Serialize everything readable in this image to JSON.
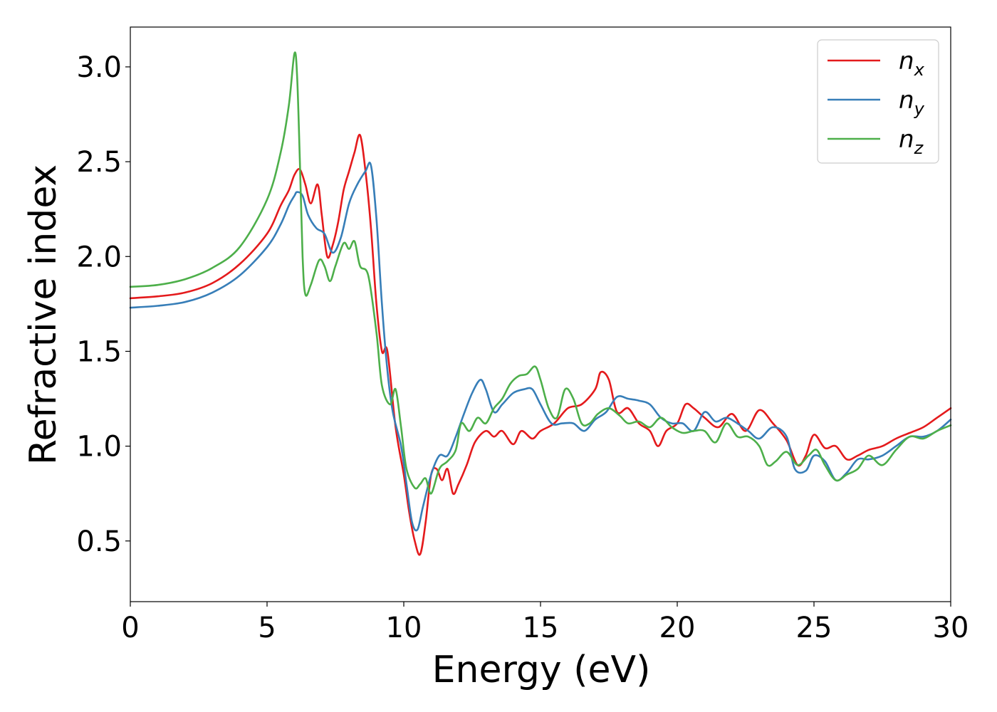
{
  "chart_data": {
    "type": "line",
    "xlabel": "Energy (eV)",
    "ylabel": "Refractive index",
    "xlim": [
      0,
      30
    ],
    "ylim": [
      0.18,
      3.21
    ],
    "xticks": [
      "0",
      "5",
      "10",
      "15",
      "20",
      "25",
      "30"
    ],
    "yticks": [
      "0.5",
      "1.0",
      "1.5",
      "2.0",
      "2.5",
      "3.0"
    ],
    "grid": false,
    "legend_position": "top-right",
    "series": [
      {
        "name": "n",
        "subscript": "x",
        "color": "#e41a1c",
        "points": [
          [
            0,
            1.78
          ],
          [
            1,
            1.79
          ],
          [
            2,
            1.81
          ],
          [
            3,
            1.86
          ],
          [
            4,
            1.96
          ],
          [
            5,
            2.12
          ],
          [
            5.5,
            2.27
          ],
          [
            5.8,
            2.35
          ],
          [
            6.0,
            2.43
          ],
          [
            6.2,
            2.46
          ],
          [
            6.4,
            2.38
          ],
          [
            6.6,
            2.28
          ],
          [
            6.85,
            2.38
          ],
          [
            7.0,
            2.22
          ],
          [
            7.2,
            2.0
          ],
          [
            7.4,
            2.06
          ],
          [
            7.6,
            2.18
          ],
          [
            7.8,
            2.35
          ],
          [
            8.0,
            2.45
          ],
          [
            8.2,
            2.55
          ],
          [
            8.4,
            2.64
          ],
          [
            8.6,
            2.45
          ],
          [
            8.8,
            2.15
          ],
          [
            9.0,
            1.75
          ],
          [
            9.2,
            1.5
          ],
          [
            9.4,
            1.5
          ],
          [
            9.7,
            1.1
          ],
          [
            10.0,
            0.85
          ],
          [
            10.2,
            0.65
          ],
          [
            10.4,
            0.5
          ],
          [
            10.6,
            0.43
          ],
          [
            10.8,
            0.6
          ],
          [
            11.0,
            0.85
          ],
          [
            11.2,
            0.88
          ],
          [
            11.4,
            0.82
          ],
          [
            11.6,
            0.88
          ],
          [
            11.8,
            0.75
          ],
          [
            12.0,
            0.8
          ],
          [
            12.3,
            0.9
          ],
          [
            12.6,
            1.02
          ],
          [
            13.0,
            1.08
          ],
          [
            13.3,
            1.05
          ],
          [
            13.6,
            1.08
          ],
          [
            14.0,
            1.01
          ],
          [
            14.3,
            1.08
          ],
          [
            14.7,
            1.04
          ],
          [
            15.0,
            1.08
          ],
          [
            15.5,
            1.12
          ],
          [
            16.0,
            1.2
          ],
          [
            16.5,
            1.22
          ],
          [
            17.0,
            1.3
          ],
          [
            17.2,
            1.39
          ],
          [
            17.5,
            1.35
          ],
          [
            17.8,
            1.18
          ],
          [
            18.2,
            1.2
          ],
          [
            18.6,
            1.12
          ],
          [
            19.0,
            1.08
          ],
          [
            19.3,
            1.0
          ],
          [
            19.6,
            1.08
          ],
          [
            20.0,
            1.12
          ],
          [
            20.3,
            1.22
          ],
          [
            20.6,
            1.2
          ],
          [
            21.0,
            1.15
          ],
          [
            21.5,
            1.1
          ],
          [
            22.0,
            1.17
          ],
          [
            22.5,
            1.08
          ],
          [
            23.0,
            1.19
          ],
          [
            23.5,
            1.12
          ],
          [
            24.0,
            1.03
          ],
          [
            24.4,
            0.9
          ],
          [
            24.7,
            0.95
          ],
          [
            25.0,
            1.06
          ],
          [
            25.4,
            0.99
          ],
          [
            25.8,
            1.0
          ],
          [
            26.2,
            0.93
          ],
          [
            26.6,
            0.95
          ],
          [
            27.0,
            0.98
          ],
          [
            27.5,
            1.0
          ],
          [
            28.0,
            1.04
          ],
          [
            28.5,
            1.07
          ],
          [
            29.0,
            1.1
          ],
          [
            29.5,
            1.15
          ],
          [
            30.0,
            1.2
          ]
        ]
      },
      {
        "name": "n",
        "subscript": "y",
        "color": "#377eb8",
        "points": [
          [
            0,
            1.73
          ],
          [
            1,
            1.74
          ],
          [
            2,
            1.76
          ],
          [
            3,
            1.81
          ],
          [
            4,
            1.9
          ],
          [
            5,
            2.05
          ],
          [
            5.5,
            2.17
          ],
          [
            5.8,
            2.27
          ],
          [
            6.0,
            2.32
          ],
          [
            6.1,
            2.34
          ],
          [
            6.3,
            2.32
          ],
          [
            6.5,
            2.22
          ],
          [
            6.8,
            2.15
          ],
          [
            7.1,
            2.12
          ],
          [
            7.4,
            2.02
          ],
          [
            7.7,
            2.1
          ],
          [
            8.0,
            2.28
          ],
          [
            8.3,
            2.38
          ],
          [
            8.6,
            2.45
          ],
          [
            8.8,
            2.48
          ],
          [
            9.0,
            2.2
          ],
          [
            9.2,
            1.75
          ],
          [
            9.4,
            1.4
          ],
          [
            9.6,
            1.18
          ],
          [
            9.9,
            1.0
          ],
          [
            10.1,
            0.8
          ],
          [
            10.3,
            0.6
          ],
          [
            10.5,
            0.56
          ],
          [
            10.7,
            0.68
          ],
          [
            11.0,
            0.85
          ],
          [
            11.3,
            0.95
          ],
          [
            11.6,
            0.95
          ],
          [
            11.9,
            1.05
          ],
          [
            12.2,
            1.17
          ],
          [
            12.5,
            1.28
          ],
          [
            12.8,
            1.35
          ],
          [
            13.0,
            1.3
          ],
          [
            13.3,
            1.18
          ],
          [
            13.6,
            1.22
          ],
          [
            14.0,
            1.28
          ],
          [
            14.4,
            1.3
          ],
          [
            14.7,
            1.3
          ],
          [
            15.0,
            1.22
          ],
          [
            15.4,
            1.12
          ],
          [
            15.8,
            1.12
          ],
          [
            16.2,
            1.12
          ],
          [
            16.6,
            1.08
          ],
          [
            17.0,
            1.14
          ],
          [
            17.4,
            1.18
          ],
          [
            17.8,
            1.26
          ],
          [
            18.2,
            1.25
          ],
          [
            18.6,
            1.24
          ],
          [
            19.0,
            1.22
          ],
          [
            19.4,
            1.15
          ],
          [
            19.8,
            1.12
          ],
          [
            20.2,
            1.12
          ],
          [
            20.6,
            1.08
          ],
          [
            21.0,
            1.18
          ],
          [
            21.4,
            1.13
          ],
          [
            21.8,
            1.15
          ],
          [
            22.2,
            1.12
          ],
          [
            22.6,
            1.08
          ],
          [
            23.0,
            1.04
          ],
          [
            23.5,
            1.1
          ],
          [
            24.0,
            1.05
          ],
          [
            24.3,
            0.88
          ],
          [
            24.7,
            0.87
          ],
          [
            25.0,
            0.95
          ],
          [
            25.4,
            0.92
          ],
          [
            25.8,
            0.82
          ],
          [
            26.2,
            0.86
          ],
          [
            26.6,
            0.93
          ],
          [
            27.0,
            0.93
          ],
          [
            27.5,
            0.95
          ],
          [
            28.0,
            1.0
          ],
          [
            28.5,
            1.05
          ],
          [
            29.0,
            1.05
          ],
          [
            29.5,
            1.08
          ],
          [
            30.0,
            1.14
          ]
        ]
      },
      {
        "name": "n",
        "subscript": "z",
        "color": "#4daf4a",
        "points": [
          [
            0,
            1.84
          ],
          [
            1,
            1.85
          ],
          [
            2,
            1.88
          ],
          [
            3,
            1.94
          ],
          [
            4,
            2.05
          ],
          [
            5,
            2.3
          ],
          [
            5.5,
            2.55
          ],
          [
            5.8,
            2.8
          ],
          [
            6.0,
            3.07
          ],
          [
            6.1,
            2.95
          ],
          [
            6.2,
            2.5
          ],
          [
            6.3,
            2.0
          ],
          [
            6.4,
            1.8
          ],
          [
            6.6,
            1.85
          ],
          [
            6.9,
            1.98
          ],
          [
            7.1,
            1.95
          ],
          [
            7.3,
            1.87
          ],
          [
            7.5,
            1.95
          ],
          [
            7.8,
            2.07
          ],
          [
            8.0,
            2.04
          ],
          [
            8.2,
            2.08
          ],
          [
            8.4,
            1.95
          ],
          [
            8.7,
            1.9
          ],
          [
            9.0,
            1.6
          ],
          [
            9.2,
            1.32
          ],
          [
            9.5,
            1.22
          ],
          [
            9.7,
            1.3
          ],
          [
            9.9,
            1.1
          ],
          [
            10.1,
            0.88
          ],
          [
            10.4,
            0.78
          ],
          [
            10.6,
            0.8
          ],
          [
            10.8,
            0.83
          ],
          [
            11.0,
            0.75
          ],
          [
            11.3,
            0.88
          ],
          [
            11.6,
            0.92
          ],
          [
            11.9,
            0.98
          ],
          [
            12.1,
            1.12
          ],
          [
            12.4,
            1.08
          ],
          [
            12.7,
            1.15
          ],
          [
            13.0,
            1.12
          ],
          [
            13.3,
            1.2
          ],
          [
            13.6,
            1.25
          ],
          [
            13.9,
            1.33
          ],
          [
            14.2,
            1.37
          ],
          [
            14.5,
            1.38
          ],
          [
            14.8,
            1.42
          ],
          [
            15.0,
            1.35
          ],
          [
            15.3,
            1.2
          ],
          [
            15.6,
            1.15
          ],
          [
            15.9,
            1.3
          ],
          [
            16.2,
            1.25
          ],
          [
            16.5,
            1.12
          ],
          [
            16.8,
            1.12
          ],
          [
            17.1,
            1.17
          ],
          [
            17.5,
            1.2
          ],
          [
            17.9,
            1.16
          ],
          [
            18.2,
            1.12
          ],
          [
            18.6,
            1.13
          ],
          [
            19.0,
            1.1
          ],
          [
            19.4,
            1.15
          ],
          [
            19.8,
            1.1
          ],
          [
            20.2,
            1.07
          ],
          [
            20.6,
            1.08
          ],
          [
            21.0,
            1.08
          ],
          [
            21.4,
            1.02
          ],
          [
            21.8,
            1.12
          ],
          [
            22.2,
            1.05
          ],
          [
            22.6,
            1.05
          ],
          [
            23.0,
            1.0
          ],
          [
            23.3,
            0.9
          ],
          [
            23.6,
            0.92
          ],
          [
            24.0,
            0.97
          ],
          [
            24.4,
            0.9
          ],
          [
            24.8,
            0.95
          ],
          [
            25.1,
            0.98
          ],
          [
            25.4,
            0.9
          ],
          [
            25.8,
            0.82
          ],
          [
            26.2,
            0.85
          ],
          [
            26.6,
            0.88
          ],
          [
            27.0,
            0.95
          ],
          [
            27.5,
            0.9
          ],
          [
            28.0,
            0.98
          ],
          [
            28.5,
            1.05
          ],
          [
            29.0,
            1.04
          ],
          [
            29.5,
            1.08
          ],
          [
            30.0,
            1.11
          ]
        ]
      }
    ]
  }
}
